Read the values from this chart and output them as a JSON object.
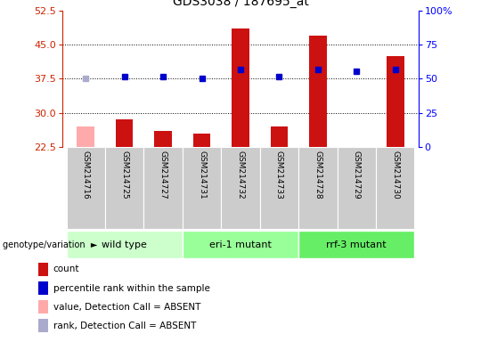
{
  "title": "GDS3038 / 187695_at",
  "samples": [
    "GSM214716",
    "GSM214725",
    "GSM214727",
    "GSM214731",
    "GSM214732",
    "GSM214733",
    "GSM214728",
    "GSM214729",
    "GSM214730"
  ],
  "count_values": [
    27.0,
    28.5,
    26.0,
    25.5,
    48.5,
    27.0,
    47.0,
    22.5,
    42.5
  ],
  "count_absent": [
    true,
    false,
    false,
    false,
    false,
    false,
    false,
    false,
    false
  ],
  "rank_percentile": [
    50.0,
    51.5,
    51.5,
    50.0,
    57.0,
    51.5,
    57.0,
    55.5,
    57.0
  ],
  "rank_absent": [
    true,
    false,
    false,
    false,
    false,
    false,
    false,
    false,
    false
  ],
  "ylim_left": [
    22.5,
    52.5
  ],
  "ylim_right": [
    0,
    100
  ],
  "yticks_left": [
    22.5,
    30.0,
    37.5,
    45.0,
    52.5
  ],
  "yticks_right": [
    0,
    25,
    50,
    75,
    100
  ],
  "ytick_labels_right": [
    "0",
    "25",
    "50",
    "75",
    "100%"
  ],
  "groups": [
    {
      "label": "wild type",
      "indices": [
        0,
        1,
        2
      ],
      "color": "#ccffcc"
    },
    {
      "label": "eri-1 mutant",
      "indices": [
        3,
        4,
        5
      ],
      "color": "#99ff99"
    },
    {
      "label": "rrf-3 mutant",
      "indices": [
        6,
        7,
        8
      ],
      "color": "#66ee66"
    }
  ],
  "color_count": "#cc1111",
  "color_count_absent": "#ffaaaa",
  "color_rank": "#0000cc",
  "color_rank_absent": "#aaaacc",
  "bar_width": 0.45,
  "rank_marker_size": 5,
  "legend_items": [
    {
      "color": "#cc1111",
      "label": "count"
    },
    {
      "color": "#0000cc",
      "label": "percentile rank within the sample"
    },
    {
      "color": "#ffaaaa",
      "label": "value, Detection Call = ABSENT"
    },
    {
      "color": "#aaaacc",
      "label": "rank, Detection Call = ABSENT"
    }
  ]
}
